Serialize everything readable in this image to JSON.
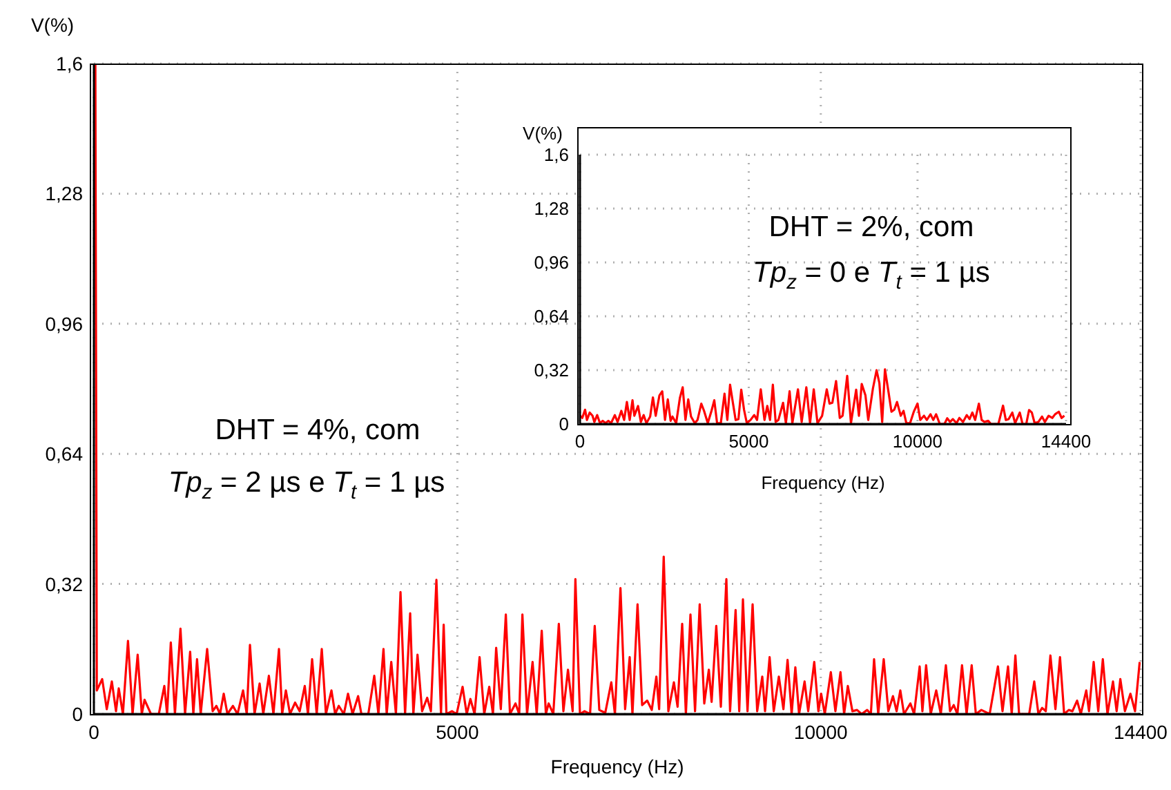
{
  "chart_data": [
    {
      "type": "line",
      "xlabel": "Frequency (Hz)",
      "ylabel": "V(%)",
      "color": "#ff0000",
      "grid": true,
      "marker": "none",
      "line_style": "solid",
      "xlim": [
        0,
        14400
      ],
      "xticks": [
        0,
        5000,
        10000,
        14400
      ],
      "ylim": [
        0,
        1.6
      ],
      "yticks": [
        {
          "value": 0,
          "label": "0"
        },
        {
          "value": 0.32,
          "label": "0,32"
        },
        {
          "value": 0.64,
          "label": "0,64"
        },
        {
          "value": 0.96,
          "label": "0,96"
        },
        {
          "value": 1.28,
          "label": "1,28"
        },
        {
          "value": 1.6,
          "label": "1,6"
        }
      ],
      "annotations": [
        "DHT = 4%, com",
        "Tp$_{z}$ = 2 µs e T$_{t}$ = 1 µs"
      ],
      "x": [
        20,
        40,
        114,
        177,
        247,
        304,
        342,
        399,
        469,
        532,
        602,
        659,
        697,
        785,
        893,
        969,
        1007,
        1058,
        1115,
        1191,
        1254,
        1324,
        1368,
        1419,
        1469,
        1558,
        1634,
        1685,
        1735,
        1786,
        1837,
        1913,
        1976,
        2052,
        2103,
        2147,
        2210,
        2280,
        2330,
        2407,
        2470,
        2546,
        2590,
        2641,
        2698,
        2768,
        2831,
        2901,
        2945,
        3002,
        3065,
        3135,
        3192,
        3268,
        3319,
        3369,
        3439,
        3496,
        3559,
        3635,
        3680,
        3775,
        3857,
        3914,
        3984,
        4028,
        4091,
        4155,
        4218,
        4281,
        4351,
        4395,
        4452,
        4515,
        4585,
        4636,
        4712,
        4775,
        4812,
        4850,
        4926,
        4990,
        5072,
        5129,
        5180,
        5237,
        5306,
        5370,
        5439,
        5490,
        5534,
        5598,
        5667,
        5724,
        5800,
        5851,
        5895,
        5959,
        6035,
        6092,
        6161,
        6218,
        6256,
        6320,
        6396,
        6459,
        6522,
        6586,
        6624,
        6687,
        6750,
        6826,
        6890,
        6953,
        7035,
        7118,
        7168,
        7244,
        7308,
        7371,
        7409,
        7479,
        7542,
        7612,
        7675,
        7738,
        7776,
        7839,
        7903,
        7979,
        8030,
        8093,
        8144,
        8207,
        8270,
        8334,
        8397,
        8460,
        8498,
        8562,
        8625,
        8701,
        8752,
        8828,
        8878,
        8929,
        8992,
        9062,
        9125,
        9195,
        9233,
        9296,
        9353,
        9423,
        9486,
        9543,
        9599,
        9650,
        9701,
        9777,
        9827,
        9910,
        9967,
        10005,
        10055,
        10138,
        10201,
        10271,
        10321,
        10372,
        10435,
        10499,
        10562,
        10638,
        10689,
        10733,
        10790,
        10866,
        10929,
        10993,
        11043,
        11094,
        11145,
        11233,
        11284,
        11360,
        11398,
        11449,
        11512,
        11588,
        11651,
        11721,
        11778,
        11829,
        11879,
        11943,
        12006,
        12076,
        12133,
        12209,
        12323,
        12437,
        12500,
        12576,
        12627,
        12677,
        12728,
        12867,
        12937,
        12994,
        13045,
        13095,
        13159,
        13228,
        13291,
        13348,
        13412,
        13462,
        13526,
        13577,
        13652,
        13690,
        13754,
        13817,
        13880,
        13944,
        14020,
        14070,
        14121,
        14184,
        14260,
        14323,
        14387
      ],
      "values": [
        1.6,
        0.058,
        0.086,
        0.012,
        0.08,
        0.007,
        0.063,
        0,
        0.18,
        0,
        0.146,
        0,
        0.035,
        0,
        0,
        0.069,
        0,
        0.176,
        0,
        0.21,
        0,
        0.153,
        0,
        0.135,
        0,
        0.16,
        0.007,
        0.02,
        0,
        0.05,
        0,
        0.02,
        0,
        0.058,
        0,
        0.17,
        0,
        0.075,
        0,
        0.094,
        0,
        0.16,
        0,
        0.058,
        0,
        0.028,
        0.007,
        0.069,
        0,
        0.135,
        0,
        0.16,
        0,
        0.058,
        0,
        0.02,
        0,
        0.05,
        0,
        0.044,
        0,
        0,
        0.094,
        0,
        0.16,
        0,
        0.128,
        0,
        0.3,
        0,
        0.248,
        0,
        0.146,
        0.007,
        0.04,
        0.007,
        0.33,
        0,
        0.22,
        0,
        0.007,
        0,
        0.067,
        0,
        0.037,
        0,
        0.14,
        0,
        0.067,
        0,
        0.163,
        0.012,
        0.245,
        0,
        0.026,
        0,
        0.245,
        0,
        0.128,
        0,
        0.205,
        0,
        0.026,
        0,
        0.222,
        0.007,
        0.109,
        0.007,
        0.332,
        0,
        0.007,
        0,
        0.217,
        0.01,
        0.003,
        0.078,
        0,
        0.31,
        0.012,
        0.14,
        0,
        0.27,
        0.022,
        0.033,
        0.01,
        0.092,
        0.012,
        0.387,
        0.007,
        0.078,
        0.018,
        0.222,
        0,
        0.245,
        0.007,
        0.27,
        0.026,
        0.109,
        0.03,
        0.217,
        0.018,
        0.332,
        0.007,
        0.256,
        0.007,
        0.282,
        0.007,
        0.27,
        0.007,
        0.092,
        0.007,
        0.14,
        0.007,
        0.092,
        0.012,
        0.133,
        0,
        0.115,
        0,
        0.08,
        0.007,
        0.128,
        0.007,
        0.05,
        0,
        0.103,
        0.007,
        0.103,
        0,
        0.069,
        0.007,
        0.01,
        0,
        0.01,
        0,
        0.135,
        0,
        0.135,
        0.007,
        0.044,
        0.007,
        0.058,
        0,
        0.026,
        0,
        0.117,
        0.007,
        0.12,
        0,
        0.058,
        0,
        0.12,
        0.007,
        0.022,
        0,
        0.12,
        0,
        0.12,
        0,
        0.01,
        0,
        0.117,
        0.007,
        0.117,
        0,
        0.144,
        0,
        0,
        0.08,
        0,
        0.015,
        0.007,
        0.144,
        0.012,
        0.14,
        0,
        0.01,
        0.007,
        0.033,
        0,
        0.058,
        0.007,
        0.128,
        0.007,
        0.135,
        0,
        0.08,
        0.007,
        0.086,
        0.007,
        0.05,
        0.007,
        0.128
      ]
    },
    {
      "type": "line",
      "xlabel": "Frequency (Hz)",
      "ylabel": "V(%)",
      "color": "#ff0000",
      "grid": true,
      "marker": "none",
      "line_style": "solid",
      "xlim": [
        0,
        14400
      ],
      "xticks": [
        0,
        5000,
        10000,
        14400
      ],
      "ylim": [
        0,
        1.6
      ],
      "yticks": [
        {
          "value": 0,
          "label": "0"
        },
        {
          "value": 0.32,
          "label": "0,32"
        },
        {
          "value": 0.64,
          "label": "0,64"
        },
        {
          "value": 0.96,
          "label": "0,96"
        },
        {
          "value": 1.28,
          "label": "1,28"
        },
        {
          "value": 1.6,
          "label": "1,6"
        }
      ],
      "annotations": [
        "DHT = 2%, com",
        "Tp$_{z}$ = 0 e T$_{t}$ = 1 µs"
      ],
      "x": [
        0,
        68,
        151,
        206,
        289,
        371,
        426,
        509,
        592,
        674,
        757,
        840,
        922,
        1032,
        1115,
        1225,
        1308,
        1390,
        1473,
        1556,
        1611,
        1721,
        1803,
        1886,
        1969,
        2079,
        2161,
        2244,
        2354,
        2437,
        2519,
        2602,
        2685,
        2740,
        2850,
        2960,
        3043,
        3125,
        3208,
        3290,
        3401,
        3483,
        3594,
        3676,
        3786,
        3896,
        3979,
        4062,
        4172,
        4282,
        4365,
        4447,
        4530,
        4612,
        4695,
        4778,
        4860,
        4943,
        5053,
        5163,
        5246,
        5356,
        5466,
        5549,
        5631,
        5714,
        5797,
        5879,
        6017,
        6100,
        6210,
        6292,
        6458,
        6568,
        6706,
        6816,
        6926,
        7036,
        7174,
        7311,
        7394,
        7477,
        7587,
        7697,
        7780,
        7917,
        8028,
        8182,
        8264,
        8347,
        8457,
        8540,
        8677,
        8787,
        8870,
        8953,
        9035,
        9145,
        9228,
        9311,
        9393,
        9503,
        9586,
        9669,
        9779,
        9889,
        9999,
        10082,
        10192,
        10275,
        10385,
        10467,
        10550,
        10660,
        10798,
        10880,
        10963,
        11046,
        11156,
        11239,
        11349,
        11459,
        11542,
        11624,
        11707,
        11817,
        11900,
        11982,
        12093,
        12175,
        12395,
        12533,
        12616,
        12698,
        12808,
        12891,
        13029,
        13111,
        13221,
        13304,
        13386,
        13469,
        13579,
        13689,
        13772,
        13882,
        13992,
        14075,
        14185,
        14268,
        14350
      ],
      "values": [
        0.05,
        0.036,
        0.085,
        0.024,
        0.068,
        0.049,
        0.012,
        0.053,
        0.005,
        0.019,
        0.005,
        0.019,
        0.005,
        0.053,
        0.012,
        0.078,
        0.024,
        0.131,
        0.024,
        0.141,
        0.049,
        0.107,
        0.012,
        0.053,
        0.005,
        0.044,
        0.158,
        0.049,
        0.17,
        0.194,
        0.024,
        0.146,
        0.019,
        0.044,
        0.005,
        0.155,
        0.218,
        0.024,
        0.146,
        0.044,
        0.005,
        0.024,
        0.121,
        0.078,
        0.005,
        0.078,
        0.141,
        0.005,
        0.005,
        0.18,
        0.024,
        0.233,
        0.126,
        0.024,
        0.029,
        0.204,
        0.085,
        0.005,
        0.024,
        0.053,
        0.024,
        0.206,
        0.024,
        0.107,
        0.024,
        0.233,
        0.012,
        0.024,
        0.126,
        0.005,
        0.194,
        0.005,
        0.206,
        0.012,
        0.218,
        0.005,
        0.206,
        0.005,
        0.049,
        0.206,
        0.121,
        0.126,
        0.255,
        0.036,
        0.049,
        0.286,
        0.005,
        0.204,
        0.049,
        0.238,
        0.17,
        0.024,
        0.209,
        0.32,
        0.243,
        0.012,
        0.325,
        0.184,
        0.073,
        0.085,
        0.131,
        0.049,
        0.078,
        0.005,
        0.005,
        0.073,
        0.121,
        0.024,
        0.049,
        0.024,
        0.058,
        0.024,
        0.058,
        0,
        0,
        0.034,
        0.012,
        0.029,
        0.005,
        0.036,
        0.012,
        0.053,
        0.029,
        0.068,
        0.024,
        0.121,
        0.024,
        0.012,
        0.019,
        0,
        0,
        0.109,
        0.024,
        0.029,
        0.068,
        0.005,
        0.068,
        0,
        0,
        0.083,
        0.068,
        0.005,
        0.012,
        0.044,
        0.012,
        0.049,
        0.036,
        0.058,
        0.073,
        0.036,
        0.049
      ]
    }
  ]
}
